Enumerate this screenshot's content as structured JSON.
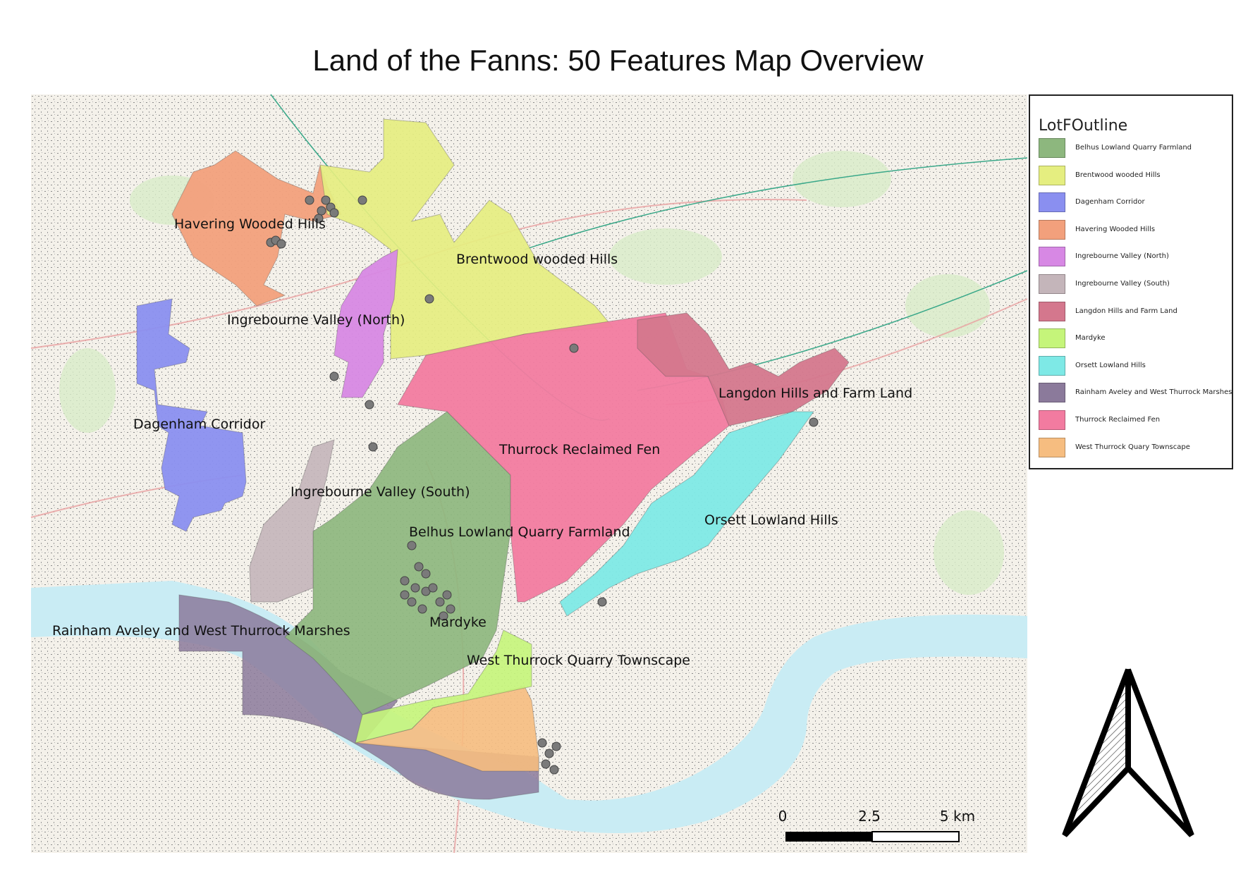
{
  "title": "Land of the Fanns: 50 Features Map Overview",
  "legend": {
    "title": "LotFOutline",
    "items": [
      {
        "label": "Belhus Lowland Quarry Farmland",
        "color": "#8db77e"
      },
      {
        "label": "Brentwood wooded Hills",
        "color": "#e5ee80"
      },
      {
        "label": "Dagenham Corridor",
        "color": "#8a8ff0"
      },
      {
        "label": "Havering Wooded Hills",
        "color": "#f2a07c"
      },
      {
        "label": "Ingrebourne Valley (North)",
        "color": "#d788e4"
      },
      {
        "label": "Ingrebourne Valley (South)",
        "color": "#c4b5ba"
      },
      {
        "label": "Langdon Hills and Farm Land",
        "color": "#d4778d"
      },
      {
        "label": "Mardyke",
        "color": "#c5f57a"
      },
      {
        "label": "Orsett Lowland Hills",
        "color": "#7ee9e6"
      },
      {
        "label": "Rainham Aveley and West Thurrock Marshes",
        "color": "#8b7a9b"
      },
      {
        "label": "Thurrock Reclaimed Fen",
        "color": "#f27ba0"
      },
      {
        "label": "West Thurrock Quary Townscape",
        "color": "#f6bd80"
      }
    ]
  },
  "map_labels": {
    "havering": "Havering Wooded Hills",
    "brentwood": "Brentwood wooded Hills",
    "ingre_north": "Ingrebourne Valley (North)",
    "dagenham": "Dagenham Corridor",
    "langdon": "Langdon Hills and Farm Land",
    "thurrock": "Thurrock Reclaimed Fen",
    "ingre_south": "Ingrebourne Valley (South)",
    "belhus": "Belhus Lowland Quarry Farmland",
    "orsett": "Orsett Lowland Hills",
    "mardyke": "Mardyke",
    "rainham": "Rainham Aveley and West Thurrock Marshes",
    "west_thurrock": "West Thurrock Quarry Townscape"
  },
  "scale": {
    "ticks": [
      "0",
      "2.5",
      "5 km"
    ]
  },
  "colors": {
    "water": "#c9ecf4",
    "basemap": "#f4f1ea",
    "feature_point": "#777777"
  }
}
